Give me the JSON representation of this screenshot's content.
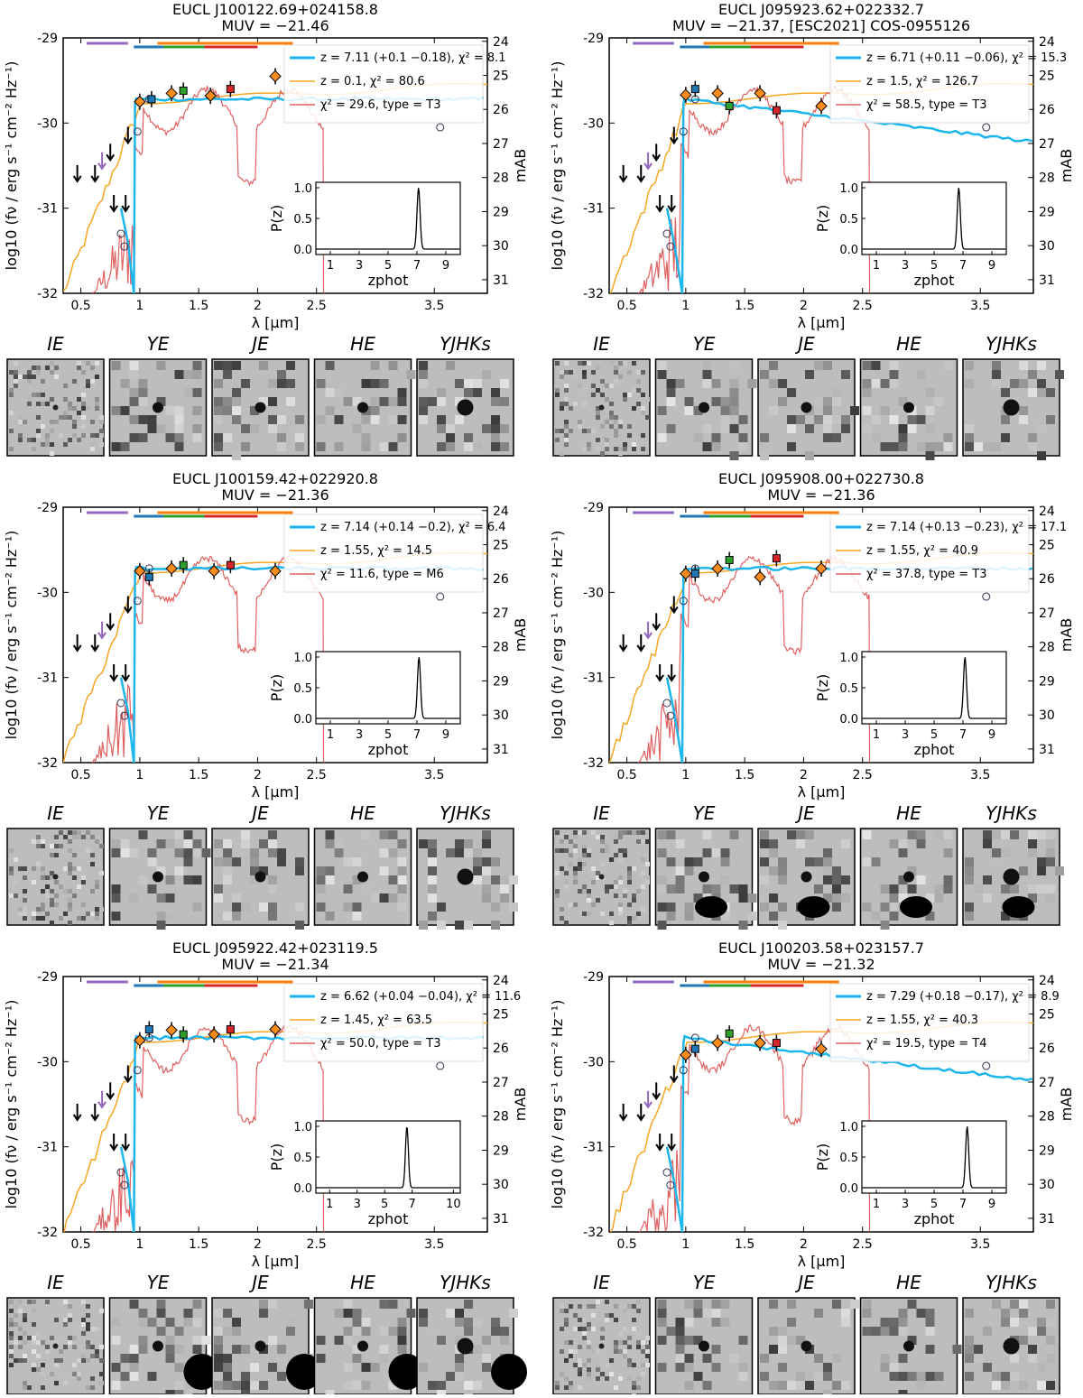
{
  "figure": {
    "ylabel": "log10 (fν / erg s⁻¹ cm⁻² Hz⁻¹)",
    "ylabel_right": "mAB",
    "xlabel": "λ [μm]",
    "xticks": [
      "0.5",
      "1",
      "1.5",
      "2",
      "2.5",
      "3.5"
    ],
    "yticks": [
      "-29",
      "-30",
      "-31",
      "-32"
    ],
    "mag_ticks": [
      "24",
      "25",
      "26",
      "27",
      "28",
      "29",
      "30",
      "31"
    ],
    "inset_ylabel": "P(z)",
    "inset_xlabel": "zphot",
    "inset_yticks": [
      "1.0",
      "0.5",
      "0.0"
    ],
    "band_labels": [
      "IE",
      "YE",
      "JE",
      "HE",
      "YJHKs"
    ],
    "colors": {
      "lae": "#1cb5ec",
      "lowz": "#f5a623",
      "bd": "#e06060",
      "purple": "#9467bd",
      "blue": "#1f77b4",
      "green": "#2ca02c",
      "red": "#d62728",
      "orange": "#ff7f0e"
    }
  },
  "chart_data": [
    {
      "type": "line",
      "title": "EUCL J100122.69+024158.8",
      "subtitle": "MUV = −21.46",
      "legend": [
        "z = 7.11 (+0.1 −0.18), χ² = 8.1",
        "z = 0.1, χ² = 80.6",
        "χ² = 29.6, type = T3"
      ],
      "z_best": 7.11,
      "inset_xticks": [
        "1",
        "3",
        "5",
        "7",
        "9"
      ],
      "xlim": [
        0.35,
        3.95
      ],
      "ylim": [
        -32,
        -29
      ],
      "phot": [
        [
          1.0,
          -29.75
        ],
        [
          1.1,
          -29.72
        ],
        [
          1.27,
          -29.65
        ],
        [
          1.37,
          -29.62
        ],
        [
          1.6,
          -29.68
        ],
        [
          1.77,
          -29.6
        ],
        [
          2.15,
          -29.45
        ]
      ]
    },
    {
      "type": "line",
      "title": "EUCL J095923.62+022332.7",
      "subtitle": "MUV = −21.37, [ESC2021] COS-0955126",
      "legend": [
        "z = 6.71 (+0.11 −0.06), χ² = 15.3",
        "z = 1.5, χ² = 126.7",
        "χ² = 58.5, type = T3"
      ],
      "z_best": 6.71,
      "inset_xticks": [
        "1",
        "3",
        "5",
        "7",
        "9"
      ],
      "xlim": [
        0.35,
        3.95
      ],
      "ylim": [
        -32,
        -29
      ],
      "phot": [
        [
          1.0,
          -29.67
        ],
        [
          1.08,
          -29.6
        ],
        [
          1.27,
          -29.65
        ],
        [
          1.37,
          -29.8
        ],
        [
          1.63,
          -29.65
        ],
        [
          1.77,
          -29.85
        ],
        [
          2.15,
          -29.8
        ]
      ]
    },
    {
      "type": "line",
      "title": "EUCL J100159.42+022920.8",
      "subtitle": "MUV = −21.36",
      "legend": [
        "z = 7.14 (+0.14 −0.2), χ² = 6.4",
        "z = 1.55, χ² = 14.5",
        "χ² = 11.6, type = M6"
      ],
      "z_best": 7.14,
      "inset_xticks": [
        "1",
        "3",
        "5",
        "7",
        "9"
      ],
      "xlim": [
        0.35,
        3.95
      ],
      "ylim": [
        -32,
        -29
      ],
      "phot": [
        [
          1.0,
          -29.75
        ],
        [
          1.08,
          -29.82
        ],
        [
          1.27,
          -29.72
        ],
        [
          1.37,
          -29.68
        ],
        [
          1.63,
          -29.75
        ],
        [
          1.77,
          -29.68
        ],
        [
          2.15,
          -29.75
        ]
      ]
    },
    {
      "type": "line",
      "title": "EUCL J095908.00+022730.8",
      "subtitle": "MUV = −21.36",
      "legend": [
        "z = 7.14 (+0.13 −0.23), χ² = 17.1",
        "z = 1.55, χ² = 40.9",
        "χ² = 37.8, type = T3"
      ],
      "z_best": 7.14,
      "inset_xticks": [
        "1",
        "3",
        "5",
        "7",
        "9"
      ],
      "xlim": [
        0.35,
        3.95
      ],
      "ylim": [
        -32,
        -29
      ],
      "phot": [
        [
          1.0,
          -29.78
        ],
        [
          1.08,
          -29.78
        ],
        [
          1.27,
          -29.72
        ],
        [
          1.37,
          -29.62
        ],
        [
          1.63,
          -29.82
        ],
        [
          1.77,
          -29.6
        ],
        [
          2.15,
          -29.72
        ]
      ]
    },
    {
      "type": "line",
      "title": "EUCL J095922.42+023119.5",
      "subtitle": "MUV = −21.34",
      "legend": [
        "z = 6.62 (+0.04 −0.04), χ² = 11.6",
        "z = 1.45, χ² = 63.5",
        "χ² = 50.0, type = T3"
      ],
      "z_best": 6.62,
      "inset_xticks": [
        "1",
        "3",
        "5",
        "7",
        "10"
      ],
      "xlim": [
        0.35,
        3.95
      ],
      "ylim": [
        -32,
        -29
      ],
      "phot": [
        [
          1.0,
          -29.75
        ],
        [
          1.08,
          -29.62
        ],
        [
          1.27,
          -29.63
        ],
        [
          1.37,
          -29.68
        ],
        [
          1.63,
          -29.68
        ],
        [
          1.77,
          -29.62
        ],
        [
          2.15,
          -29.62
        ]
      ]
    },
    {
      "type": "line",
      "title": "EUCL J100203.58+023157.7",
      "subtitle": "MUV = −21.32",
      "legend": [
        "z = 7.29 (+0.18 −0.17), χ² = 8.9",
        "z = 1.55, χ² = 40.3",
        "χ² = 19.5, type = T4"
      ],
      "z_best": 7.29,
      "inset_xticks": [
        "1",
        "3",
        "5",
        "7",
        "9"
      ],
      "xlim": [
        0.35,
        3.95
      ],
      "ylim": [
        -32,
        -29
      ],
      "phot": [
        [
          1.0,
          -29.92
        ],
        [
          1.08,
          -29.85
        ],
        [
          1.27,
          -29.78
        ],
        [
          1.37,
          -29.67
        ],
        [
          1.63,
          -29.78
        ],
        [
          1.77,
          -29.78
        ],
        [
          2.15,
          -29.85
        ]
      ]
    }
  ]
}
